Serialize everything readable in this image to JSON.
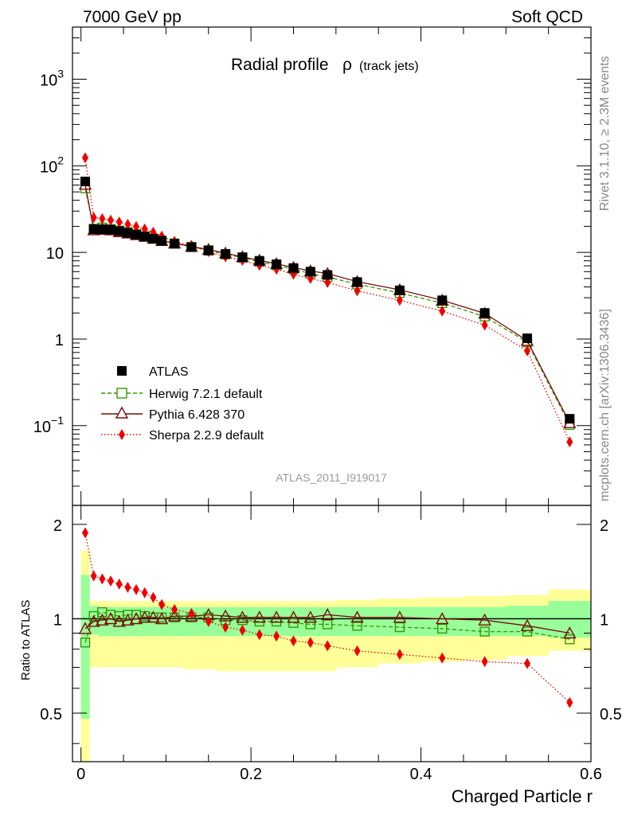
{
  "header": {
    "left": "7000 GeV pp",
    "right": "Soft QCD"
  },
  "side_labels": {
    "rivet": "Rivet 3.1.10, ≥ 2.3M events",
    "site": "mcplots.cern.ch [arXiv:1306.3436]"
  },
  "chart_data": [
    {
      "type": "scatter",
      "panel": "main",
      "title": "Radial profile",
      "title_symbol": "ρ",
      "title_suffix": "(track jets)",
      "analysis_label": "ATLAS_2011_I919017",
      "yscale": "log",
      "ylim": [
        0.012,
        4000
      ],
      "xlim": [
        -0.01,
        0.6
      ],
      "ytick_labels": [
        {
          "base": "10",
          "exp": "3",
          "value": 1000
        },
        {
          "base": "10",
          "exp": "2",
          "value": 100
        },
        {
          "base": "10",
          "exp": "",
          "value": 10
        },
        {
          "base": "1",
          "exp": "",
          "value": 1
        },
        {
          "base": "10",
          "exp": "−1",
          "value": 0.1
        }
      ],
      "x": [
        0.005,
        0.015,
        0.025,
        0.035,
        0.045,
        0.055,
        0.065,
        0.075,
        0.085,
        0.095,
        0.11,
        0.13,
        0.15,
        0.17,
        0.19,
        0.21,
        0.23,
        0.25,
        0.27,
        0.29,
        0.325,
        0.375,
        0.425,
        0.475,
        0.525,
        0.575
      ],
      "series": [
        {
          "name": "ATLAS",
          "style": "data",
          "color": "#000000",
          "values": [
            66,
            18.5,
            18.6,
            18.3,
            17.6,
            16.8,
            16.0,
            15.2,
            14.4,
            13.6,
            12.6,
            11.5,
            10.5,
            9.6,
            8.8,
            8.0,
            7.3,
            6.6,
            6.0,
            5.5,
            4.55,
            3.65,
            2.8,
            2.0,
            1.02,
            0.12
          ]
        },
        {
          "name": "Herwig 7.2.1 default",
          "style": "square",
          "color": "#339900",
          "values": [
            55,
            18.8,
            19.4,
            18.6,
            17.9,
            17.2,
            16.3,
            15.4,
            14.5,
            13.7,
            12.7,
            11.6,
            10.6,
            9.5,
            8.7,
            7.8,
            7.1,
            6.4,
            5.7,
            5.2,
            4.3,
            3.4,
            2.6,
            1.82,
            0.92,
            0.102
          ]
        },
        {
          "name": "Pythia 6.428 370",
          "style": "triangle",
          "color": "#7a0c0c",
          "values": [
            61,
            18.2,
            18.4,
            18.2,
            17.3,
            16.7,
            16.0,
            15.3,
            14.5,
            13.7,
            12.8,
            11.7,
            10.8,
            9.8,
            8.9,
            8.1,
            7.4,
            6.7,
            6.1,
            5.7,
            4.6,
            3.7,
            2.8,
            1.98,
            0.96,
            0.108
          ]
        },
        {
          "name": "Sherpa 2.2.9 default",
          "style": "diamond",
          "color": "#ee0000",
          "values": [
            124,
            25.3,
            24.5,
            23.6,
            22.4,
            21.1,
            19.9,
            18.6,
            17.1,
            15.4,
            13.4,
            11.9,
            10.2,
            8.9,
            8.1,
            7.1,
            6.4,
            5.6,
            5.0,
            4.5,
            3.6,
            2.8,
            2.1,
            1.45,
            0.73,
            0.065
          ]
        }
      ]
    },
    {
      "type": "scatter",
      "panel": "ratio",
      "ylabel": "Ratio to ATLAS",
      "xlabel": "Charged Particle r",
      "ylim": [
        0.35,
        2.3
      ],
      "xlim": [
        -0.01,
        0.6
      ],
      "ytick_labels": [
        "2",
        "1",
        "0.5"
      ],
      "xtick_labels": [
        "0",
        "0.2",
        "0.4",
        "0.6"
      ],
      "x": [
        0.005,
        0.015,
        0.025,
        0.035,
        0.045,
        0.055,
        0.065,
        0.075,
        0.085,
        0.095,
        0.11,
        0.13,
        0.15,
        0.17,
        0.19,
        0.21,
        0.23,
        0.25,
        0.27,
        0.29,
        0.325,
        0.375,
        0.425,
        0.475,
        0.525,
        0.575
      ],
      "bin_edges": [
        0,
        0.01,
        0.02,
        0.03,
        0.04,
        0.05,
        0.06,
        0.07,
        0.08,
        0.09,
        0.1,
        0.12,
        0.14,
        0.16,
        0.18,
        0.2,
        0.22,
        0.24,
        0.26,
        0.28,
        0.3,
        0.35,
        0.4,
        0.45,
        0.5,
        0.55,
        0.6
      ],
      "band_inner_lo": [
        0.48,
        0.89,
        0.88,
        0.88,
        0.88,
        0.88,
        0.88,
        0.88,
        0.88,
        0.88,
        0.88,
        0.88,
        0.88,
        0.88,
        0.88,
        0.88,
        0.88,
        0.88,
        0.88,
        0.88,
        0.88,
        0.88,
        0.88,
        0.88,
        0.88,
        0.87
      ],
      "band_inner_hi": [
        1.38,
        1.1,
        1.09,
        1.09,
        1.09,
        1.09,
        1.09,
        1.09,
        1.09,
        1.09,
        1.09,
        1.09,
        1.09,
        1.09,
        1.09,
        1.09,
        1.09,
        1.09,
        1.09,
        1.09,
        1.09,
        1.09,
        1.09,
        1.09,
        1.1,
        1.14
      ],
      "band_outer_lo": [
        0.35,
        0.7,
        0.7,
        0.7,
        0.7,
        0.7,
        0.7,
        0.7,
        0.7,
        0.7,
        0.7,
        0.69,
        0.69,
        0.68,
        0.68,
        0.68,
        0.68,
        0.68,
        0.68,
        0.68,
        0.7,
        0.72,
        0.73,
        0.74,
        0.76,
        0.79
      ],
      "band_outer_hi": [
        1.65,
        1.14,
        1.14,
        1.14,
        1.14,
        1.14,
        1.14,
        1.14,
        1.14,
        1.14,
        1.14,
        1.14,
        1.14,
        1.14,
        1.14,
        1.14,
        1.14,
        1.14,
        1.14,
        1.14,
        1.15,
        1.16,
        1.17,
        1.18,
        1.19,
        1.24
      ],
      "series": [
        {
          "name": "Herwig 7.2.1 default",
          "style": "square",
          "color": "#339900",
          "values": [
            0.84,
            1.02,
            1.05,
            1.03,
            1.02,
            1.03,
            1.03,
            1.02,
            1.01,
            1.01,
            1.01,
            1.01,
            1.01,
            0.99,
            0.99,
            0.98,
            0.98,
            0.97,
            0.96,
            0.96,
            0.95,
            0.94,
            0.93,
            0.91,
            0.91,
            0.86
          ]
        },
        {
          "name": "Pythia 6.428 370",
          "style": "triangle",
          "color": "#7a0c0c",
          "values": [
            0.93,
            0.98,
            0.99,
            1.0,
            0.98,
            0.99,
            1.0,
            1.01,
            1.01,
            1.0,
            1.02,
            1.02,
            1.03,
            1.02,
            1.01,
            1.01,
            1.01,
            1.01,
            1.01,
            1.03,
            1.01,
            1.01,
            1.0,
            0.99,
            0.95,
            0.9
          ]
        },
        {
          "name": "Sherpa 2.2.9 default",
          "style": "diamond",
          "color": "#ee0000",
          "values": [
            1.88,
            1.37,
            1.34,
            1.32,
            1.29,
            1.26,
            1.24,
            1.21,
            1.17,
            1.11,
            1.07,
            1.04,
            0.98,
            0.94,
            0.92,
            0.89,
            0.88,
            0.85,
            0.84,
            0.82,
            0.79,
            0.77,
            0.75,
            0.73,
            0.72,
            0.54
          ]
        }
      ]
    }
  ]
}
